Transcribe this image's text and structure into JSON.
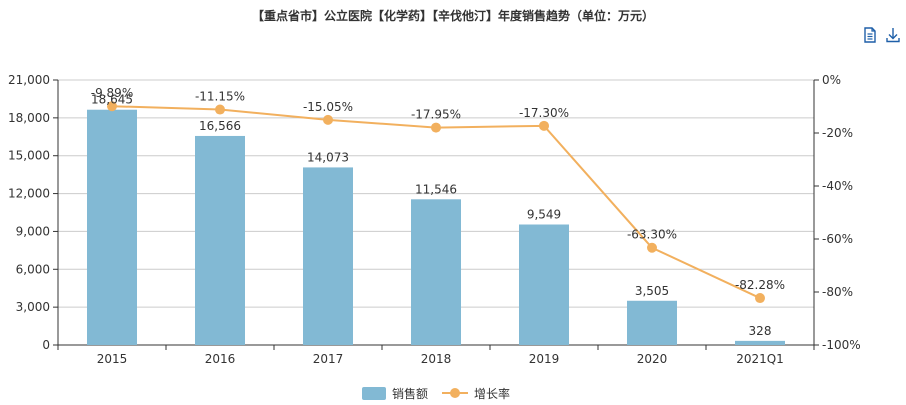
{
  "title": "【重点省市】公立医院【化学药】【辛伐他汀】年度销售趋势（单位：万元）",
  "toolbar": {
    "data_view_icon": "document-icon",
    "download_icon": "download-icon"
  },
  "colors": {
    "bar": "#82b9d4",
    "line": "#f2b05e",
    "axis": "#333333",
    "grid": "#cccccc",
    "text": "#333333"
  },
  "chart_data": {
    "type": "bar",
    "categories": [
      "2015",
      "2016",
      "2017",
      "2018",
      "2019",
      "2020",
      "2021Q1"
    ],
    "series": [
      {
        "name": "销售额",
        "type": "bar",
        "axis": "left",
        "values": [
          18645,
          16566,
          14073,
          11546,
          9549,
          3505,
          328
        ],
        "labels": [
          "18,645",
          "16,566",
          "14,073",
          "11,546",
          "9,549",
          "3,505",
          "328"
        ]
      },
      {
        "name": "增长率",
        "type": "line",
        "axis": "right",
        "values": [
          -9.89,
          -11.15,
          -15.05,
          -17.95,
          -17.3,
          -63.3,
          -82.28
        ],
        "labels": [
          "-9.89%",
          "-11.15%",
          "-15.05%",
          "-17.95%",
          "-17.30%",
          "-63.30%",
          "-82.28%"
        ]
      }
    ],
    "y_left": {
      "min": 0,
      "max": 21000,
      "ticks": [
        0,
        3000,
        6000,
        9000,
        12000,
        15000,
        18000,
        21000
      ],
      "tick_labels": [
        "0",
        "3,000",
        "6,000",
        "9,000",
        "12,000",
        "15,000",
        "18,000",
        "21,000"
      ]
    },
    "y_right": {
      "min": -100,
      "max": 0,
      "ticks": [
        0,
        -20,
        -40,
        -60,
        -80,
        -100
      ],
      "tick_labels": [
        "0%",
        "-20%",
        "-40%",
        "-60%",
        "-80%",
        "-100%"
      ]
    },
    "grid": true,
    "legend": {
      "position": "bottom-center",
      "items": [
        "销售额",
        "增长率"
      ]
    }
  }
}
